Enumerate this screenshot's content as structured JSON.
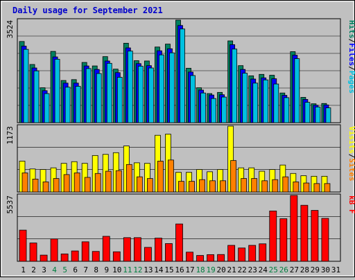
{
  "title": "Daily usage for September 2021",
  "colors": {
    "background": "#c0c0c0",
    "title": "#0000cc",
    "pages": "#00c0e0",
    "files": "#0000ff",
    "hits": "#008060",
    "sites": "#ff8000",
    "visits": "#ffff00",
    "kbytes": "#ff0000",
    "weekend_day": "#008040",
    "weekday": "#000000"
  },
  "chart_data": [
    {
      "type": "bar",
      "panel": "hits-files-pages",
      "ymax_label": "3524",
      "ylim": [
        0,
        3524
      ],
      "legend": [
        {
          "label": "Pages",
          "color": "#00c0e0"
        },
        {
          "label": "/",
          "color": "#000000"
        },
        {
          "label": "Files",
          "color": "#0000ff"
        },
        {
          "label": "/",
          "color": "#000000"
        },
        {
          "label": "Hits",
          "color": "#008060"
        }
      ],
      "categories": [
        "1",
        "2",
        "3",
        "4",
        "5",
        "6",
        "7",
        "8",
        "9",
        "10",
        "11",
        "12",
        "13",
        "14",
        "15",
        "16",
        "17",
        "18",
        "19",
        "20",
        "21",
        "22",
        "23",
        "24",
        "25",
        "26",
        "27",
        "28",
        "29",
        "30",
        "31"
      ],
      "series": [
        {
          "name": "Hits",
          "color": "#008060",
          "values": [
            2790,
            2000,
            1200,
            2450,
            1450,
            1480,
            2070,
            1950,
            2270,
            1840,
            2730,
            2130,
            2120,
            2600,
            2700,
            3524,
            1870,
            1200,
            1000,
            1040,
            2810,
            1960,
            1610,
            1660,
            1630,
            1020,
            2440,
            870,
            650,
            660,
            0
          ]
        },
        {
          "name": "Files",
          "color": "#0000ff",
          "values": [
            2630,
            1880,
            1100,
            2260,
            1360,
            1360,
            1950,
            1830,
            2120,
            1720,
            2570,
            2030,
            1960,
            2470,
            2540,
            3340,
            1740,
            1120,
            950,
            960,
            2680,
            1830,
            1500,
            1540,
            1510,
            940,
            2320,
            800,
            600,
            610,
            0
          ]
        },
        {
          "name": "Pages",
          "color": "#00c0e0",
          "values": [
            2520,
            1780,
            1000,
            2180,
            1220,
            1250,
            1860,
            1690,
            2040,
            1560,
            2460,
            1940,
            1880,
            2330,
            2400,
            3220,
            1620,
            1020,
            830,
            880,
            2530,
            1700,
            1360,
            1470,
            1330,
            860,
            2200,
            700,
            540,
            510,
            0
          ]
        }
      ]
    },
    {
      "type": "bar",
      "panel": "visits-sites",
      "ymax_label": "1173",
      "ylim": [
        0,
        1173
      ],
      "legend": [
        {
          "label": "Sites",
          "color": "#ff8000"
        },
        {
          "label": "/",
          "color": "#000000"
        },
        {
          "label": "Visits",
          "color": "#ffff00"
        }
      ],
      "categories": [
        "1",
        "2",
        "3",
        "4",
        "5",
        "6",
        "7",
        "8",
        "9",
        "10",
        "11",
        "12",
        "13",
        "14",
        "15",
        "16",
        "17",
        "18",
        "19",
        "20",
        "21",
        "22",
        "23",
        "24",
        "25",
        "26",
        "27",
        "28",
        "29",
        "30",
        "31"
      ],
      "series": [
        {
          "name": "Visits",
          "color": "#ffff00",
          "values": [
            550,
            410,
            400,
            430,
            510,
            540,
            510,
            650,
            670,
            700,
            820,
            520,
            510,
            1010,
            1030,
            350,
            350,
            400,
            360,
            400,
            1173,
            430,
            430,
            370,
            400,
            480,
            330,
            290,
            280,
            280,
            0
          ]
        },
        {
          "name": "Sites",
          "color": "#ff8000",
          "values": [
            340,
            230,
            180,
            240,
            310,
            340,
            260,
            330,
            370,
            380,
            490,
            270,
            240,
            550,
            570,
            190,
            190,
            220,
            200,
            200,
            560,
            240,
            240,
            200,
            220,
            270,
            180,
            160,
            150,
            150,
            0
          ]
        }
      ]
    },
    {
      "type": "bar",
      "panel": "kbytes",
      "ymax_label": "5537",
      "ylim": [
        0,
        5537
      ],
      "legend": [
        {
          "label": "kB F",
          "color": "#ff0000"
        }
      ],
      "categories": [
        "1",
        "2",
        "3",
        "4",
        "5",
        "6",
        "7",
        "8",
        "9",
        "10",
        "11",
        "12",
        "13",
        "14",
        "15",
        "16",
        "17",
        "18",
        "19",
        "20",
        "21",
        "22",
        "23",
        "24",
        "25",
        "26",
        "27",
        "28",
        "29",
        "30",
        "31"
      ],
      "series": [
        {
          "name": "kB F",
          "color": "#ff0000",
          "values": [
            2620,
            1540,
            520,
            1880,
            620,
            870,
            1640,
            830,
            2100,
            800,
            1990,
            1990,
            1170,
            1950,
            1490,
            3140,
            770,
            490,
            560,
            570,
            1340,
            1120,
            1340,
            1470,
            4230,
            3580,
            5537,
            4710,
            4280,
            3610,
            0
          ]
        }
      ]
    }
  ],
  "x_axis": {
    "labels": [
      "1",
      "2",
      "3",
      "4",
      "5",
      "6",
      "7",
      "8",
      "9",
      "10",
      "11",
      "12",
      "13",
      "14",
      "15",
      "16",
      "17",
      "18",
      "19",
      "20",
      "21",
      "22",
      "23",
      "24",
      "25",
      "26",
      "27",
      "28",
      "29",
      "30",
      "31"
    ],
    "weekend_days": [
      "4",
      "5",
      "11",
      "12",
      "18",
      "19",
      "25",
      "26"
    ]
  }
}
